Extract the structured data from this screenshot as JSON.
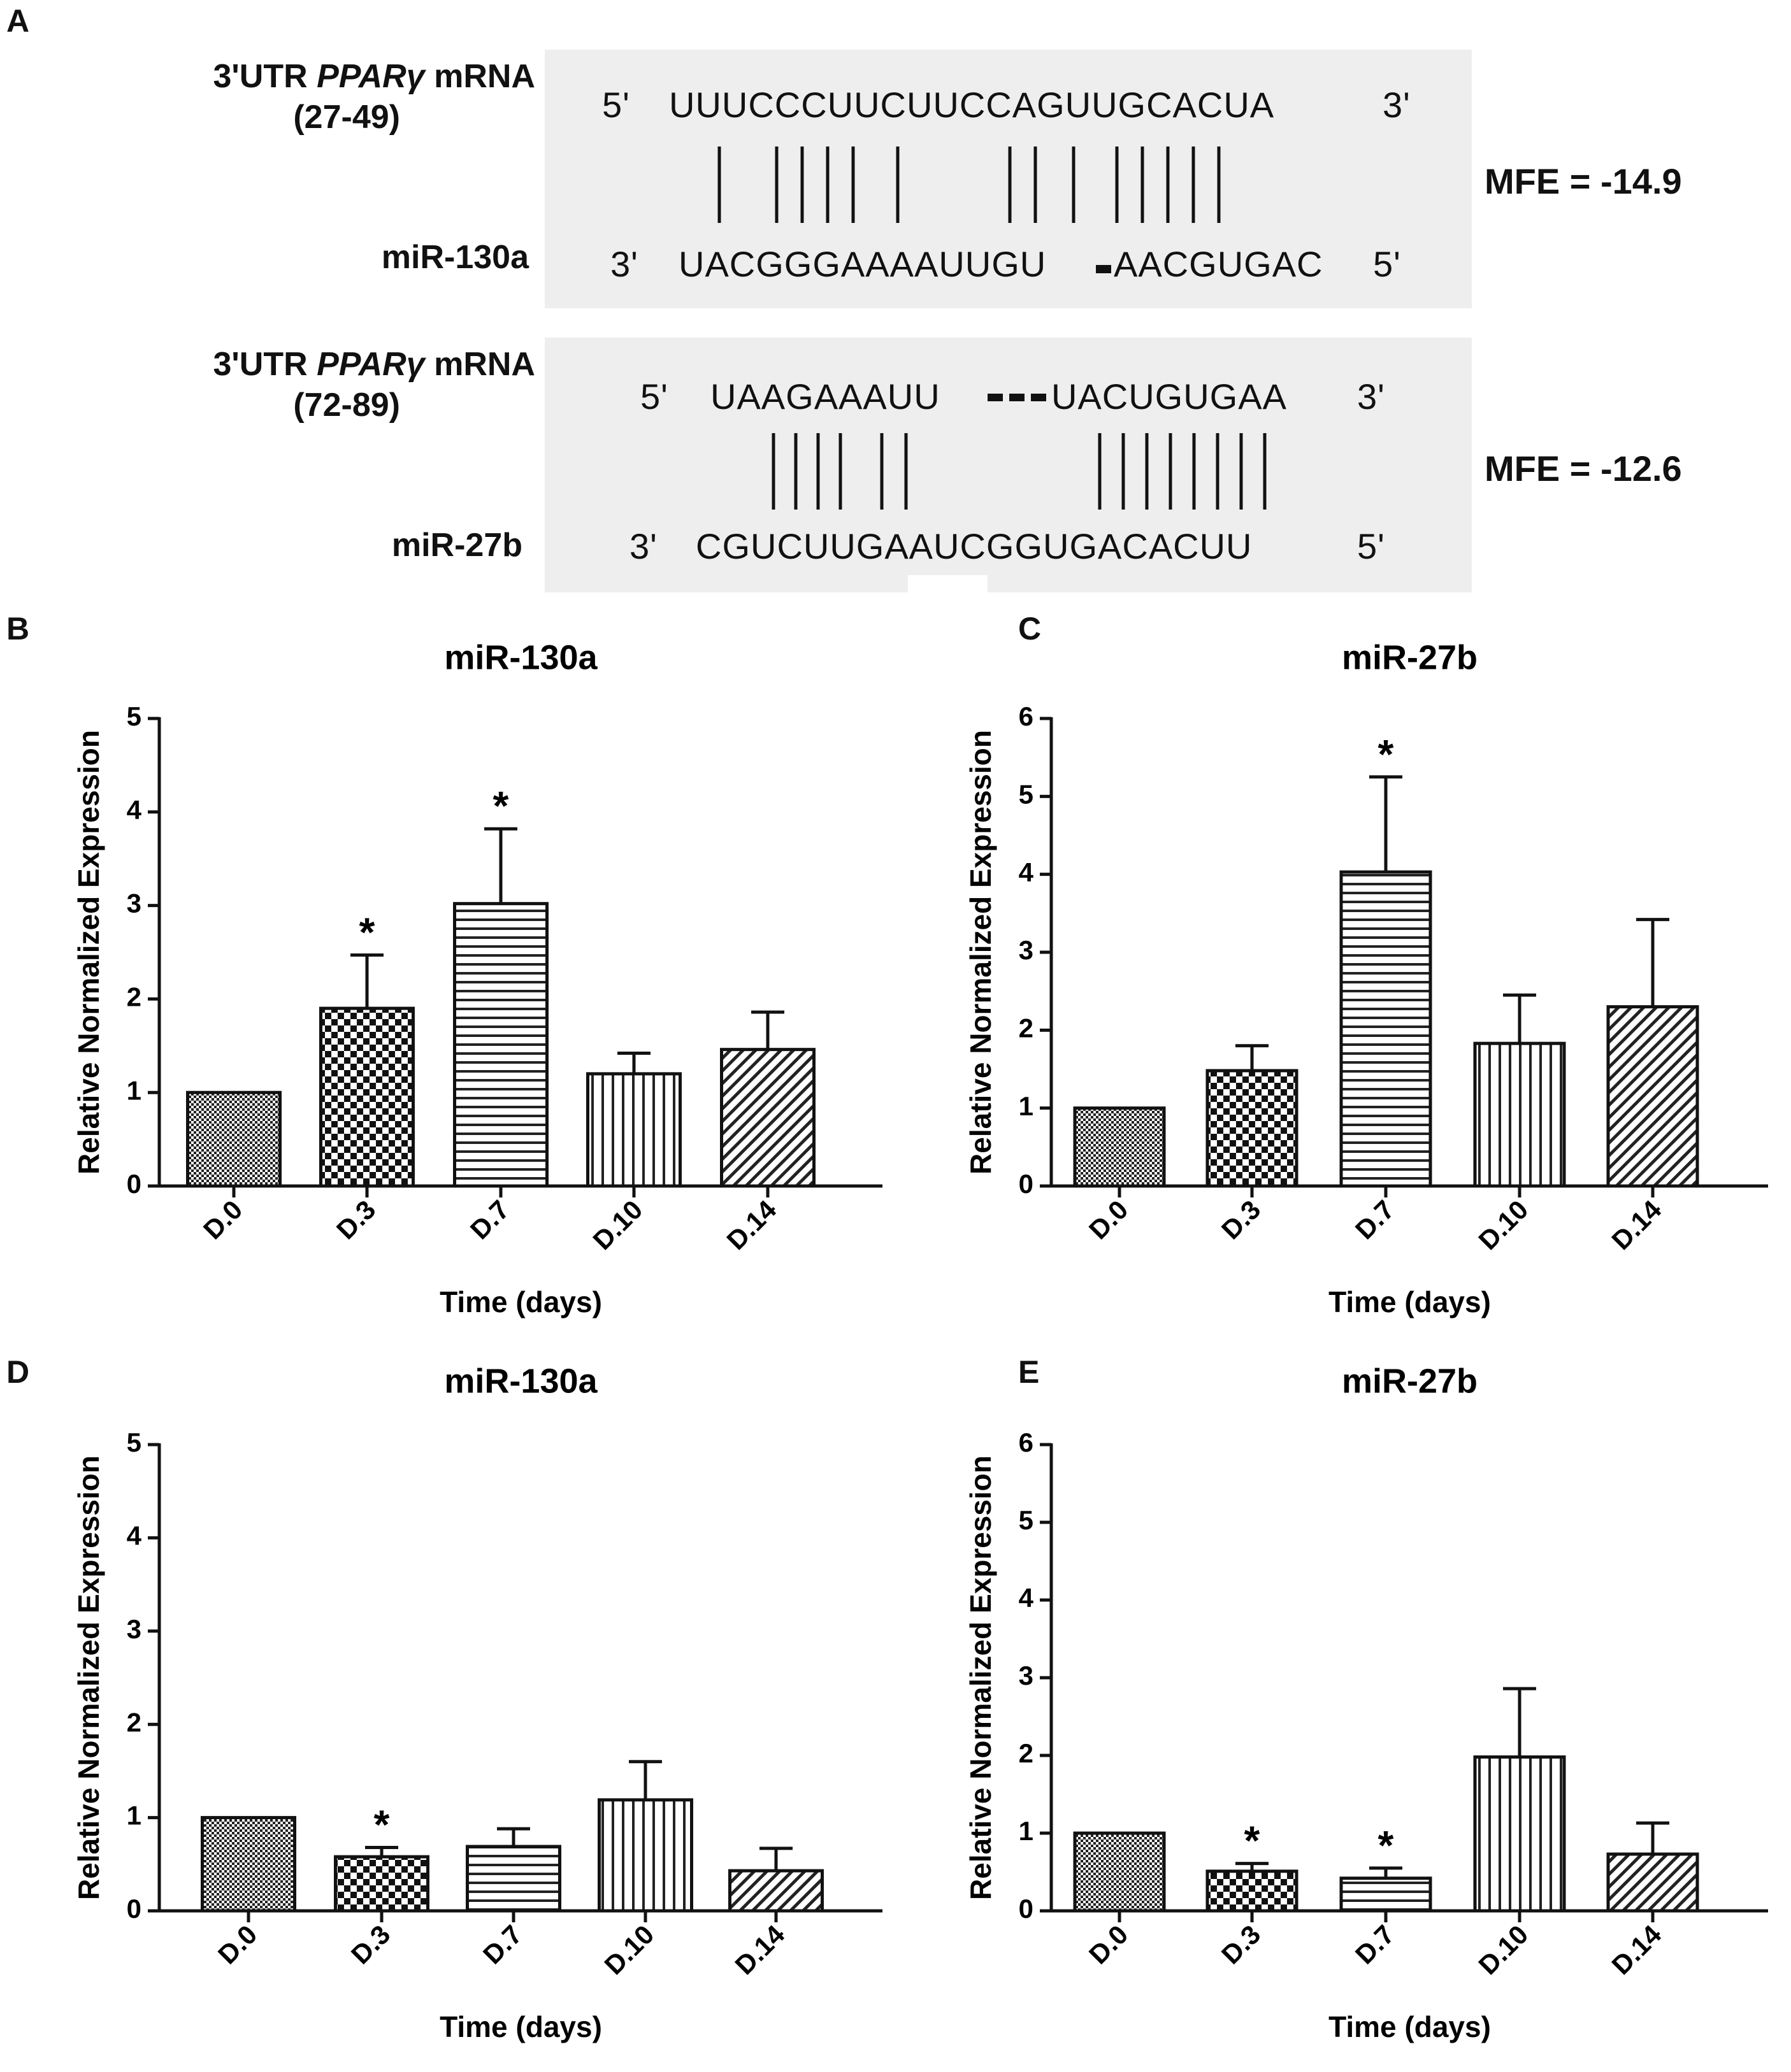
{
  "panel_labels": {
    "a": "A",
    "b": "B",
    "c": "C",
    "d": "D",
    "e": "E"
  },
  "alignments": [
    {
      "target_label": "3'UTR",
      "gene_italic": "PPARγ",
      "target_suffix": "mRNA",
      "range": "(27-49)",
      "mirna": "miR-130a",
      "top_5": "5'",
      "top_seq": "UUUCCCUUCUUCCAGUUGCACUA",
      "top_3": "3'",
      "bottom_3": "3'",
      "bottom_seq_a": "UACGGGAAAAUUGU",
      "bottom_seq_b": "AACGUGAC",
      "bottom_5": "5'",
      "mfe": "MFE = -14.9"
    },
    {
      "target_label": "3'UTR",
      "gene_italic": "PPARγ",
      "target_suffix": "mRNA",
      "range": "(72-89)",
      "mirna": "miR-27b",
      "top_5": "5'",
      "top_seq_a": "UAAGAAAUU",
      "top_seq_b": "UACUGUGAA",
      "top_3": "3'",
      "bottom_3": "3'",
      "bottom_seq": "CGUCUUGAAUCGGUGACACUU",
      "bottom_5": "5'",
      "mfe": "MFE = -12.6"
    }
  ],
  "chart_data": [
    {
      "id": "B",
      "type": "bar",
      "title": "miR-130a",
      "xlabel": "Time (days)",
      "ylabel": "Relative Normalized Expression",
      "categories": [
        "D.0",
        "D.3",
        "D.7",
        "D.10",
        "D.14"
      ],
      "values": [
        1.0,
        1.9,
        3.02,
        1.2,
        1.46
      ],
      "errors": [
        0,
        0.57,
        0.8,
        0.22,
        0.4
      ],
      "significant": [
        false,
        true,
        true,
        false,
        false
      ],
      "patterns": [
        "dots",
        "checker",
        "hlines",
        "vlines",
        "diag"
      ],
      "ylim": [
        0,
        5
      ],
      "yticks": [
        0,
        1,
        2,
        3,
        4,
        5
      ],
      "marker": "*"
    },
    {
      "id": "C",
      "type": "bar",
      "title": "miR-27b",
      "xlabel": "Time (days)",
      "ylabel": "Relative Normalized Expression",
      "categories": [
        "D.0",
        "D.3",
        "D.7",
        "D.10",
        "D.14"
      ],
      "values": [
        1.0,
        1.48,
        4.03,
        1.83,
        2.3
      ],
      "errors": [
        0,
        0.32,
        1.22,
        0.62,
        1.12
      ],
      "significant": [
        false,
        false,
        true,
        false,
        false
      ],
      "patterns": [
        "dots",
        "checker",
        "hlines",
        "vlines",
        "diag"
      ],
      "ylim": [
        0,
        6
      ],
      "yticks": [
        0,
        1,
        2,
        3,
        4,
        5,
        6
      ],
      "marker": "*"
    },
    {
      "id": "D",
      "type": "bar",
      "title": "miR-130a",
      "xlabel": "Time (days)",
      "ylabel": "Relative Normalized Expression",
      "categories": [
        "D.0",
        "D.3",
        "D.7",
        "D.10",
        "D.14"
      ],
      "values": [
        1.0,
        0.58,
        0.69,
        1.19,
        0.43
      ],
      "errors": [
        0,
        0.1,
        0.19,
        0.41,
        0.24
      ],
      "significant": [
        false,
        true,
        false,
        false,
        false
      ],
      "patterns": [
        "dots",
        "checker",
        "hlines",
        "vlines",
        "diag"
      ],
      "ylim": [
        0,
        5
      ],
      "yticks": [
        0,
        1,
        2,
        3,
        4,
        5
      ],
      "marker": "*"
    },
    {
      "id": "E",
      "type": "bar",
      "title": "miR-27b",
      "xlabel": "Time (days)",
      "ylabel": "Relative Normalized Expression",
      "categories": [
        "D.0",
        "D.3",
        "D.7",
        "D.10",
        "D.14"
      ],
      "values": [
        1.0,
        0.51,
        0.42,
        1.98,
        0.73
      ],
      "errors": [
        0,
        0.1,
        0.13,
        0.88,
        0.4
      ],
      "significant": [
        false,
        true,
        true,
        false,
        false
      ],
      "patterns": [
        "dots",
        "checker",
        "hlines",
        "vlines",
        "diag"
      ],
      "ylim": [
        0,
        6
      ],
      "yticks": [
        0,
        1,
        2,
        3,
        4,
        5,
        6
      ],
      "marker": "*"
    }
  ]
}
